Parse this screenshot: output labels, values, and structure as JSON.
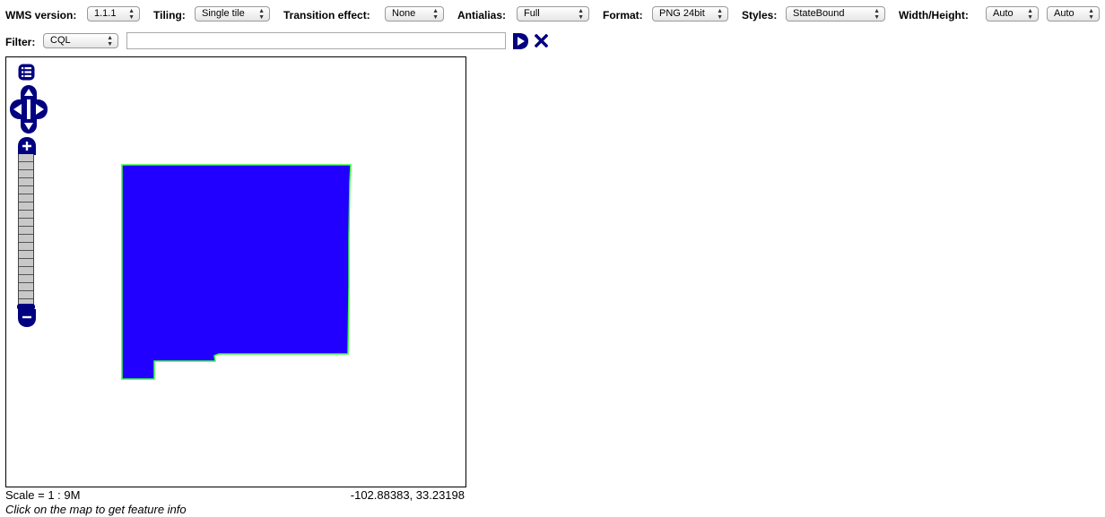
{
  "toolbar": {
    "wms_version": {
      "label": "WMS version:",
      "value": "1.1.1"
    },
    "tiling": {
      "label": "Tiling:",
      "value": "Single tile"
    },
    "transition": {
      "label": "Transition effect:",
      "value": "None"
    },
    "antialias": {
      "label": "Antialias:",
      "value": "Full"
    },
    "format": {
      "label": "Format:",
      "value": "PNG 24bit"
    },
    "styles": {
      "label": "Styles:",
      "value": "StateBound"
    },
    "size": {
      "label": "Width/Height:",
      "width_value": "Auto",
      "height_value": "Auto"
    }
  },
  "filter": {
    "label": "Filter:",
    "type_value": "CQL",
    "text_value": ""
  },
  "map": {
    "polygon_fill": "#2200ff",
    "polygon_stroke": "#33ff33",
    "control_color": "#000080"
  },
  "status": {
    "scale": "Scale = 1 : 9M",
    "coordinates": "-102.88383, 33.23198",
    "hint": "Click on the map to get feature info"
  },
  "icons": {
    "layer_switcher": "layer-switcher-icon",
    "pan": "pan-arrows-icon",
    "zoom_in": "zoom-in-icon",
    "zoom_out": "zoom-out-icon",
    "apply_filter": "play-icon",
    "reset_filter": "close-icon"
  }
}
